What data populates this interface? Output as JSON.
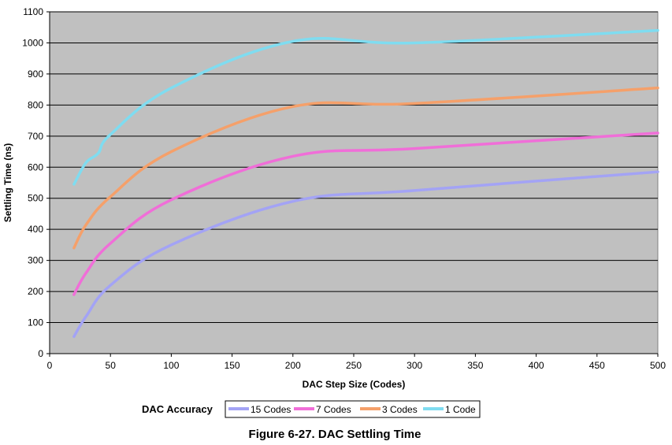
{
  "chart_data": {
    "type": "line",
    "xlabel": "DAC Step Size (Codes)",
    "ylabel": "Settling Time (ns)",
    "xlim": [
      0,
      500
    ],
    "ylim": [
      0,
      1100
    ],
    "x_ticks": [
      0,
      50,
      100,
      150,
      200,
      250,
      300,
      350,
      400,
      450,
      500
    ],
    "y_ticks": [
      0,
      100,
      200,
      300,
      400,
      500,
      600,
      700,
      800,
      900,
      1000,
      1100
    ],
    "grid": "horizontal",
    "background_color": "#c0c0c0",
    "legend_title": "DAC Accuracy",
    "legend_placement": "bottom",
    "caption": "Figure 6-27. DAC Settling Time",
    "series": [
      {
        "name": "15 Codes",
        "color": "#a3a3f5",
        "x": [
          20,
          30,
          50,
          100,
          200,
          300,
          500
        ],
        "values": [
          55,
          120,
          220,
          350,
          490,
          525,
          585
        ]
      },
      {
        "name": "7 Codes",
        "color": "#f06ed8",
        "x": [
          20,
          30,
          50,
          100,
          200,
          300,
          500
        ],
        "values": [
          190,
          260,
          355,
          495,
          635,
          660,
          710
        ]
      },
      {
        "name": "3 Codes",
        "color": "#f5a06a",
        "x": [
          20,
          30,
          50,
          100,
          200,
          300,
          500
        ],
        "values": [
          340,
          415,
          505,
          650,
          795,
          805,
          855
        ]
      },
      {
        "name": "1 Code",
        "color": "#7fdcf0",
        "x": [
          20,
          30,
          40,
          50,
          100,
          200,
          300,
          500
        ],
        "values": [
          545,
          615,
          645,
          705,
          855,
          1005,
          1000,
          1040
        ]
      }
    ]
  }
}
